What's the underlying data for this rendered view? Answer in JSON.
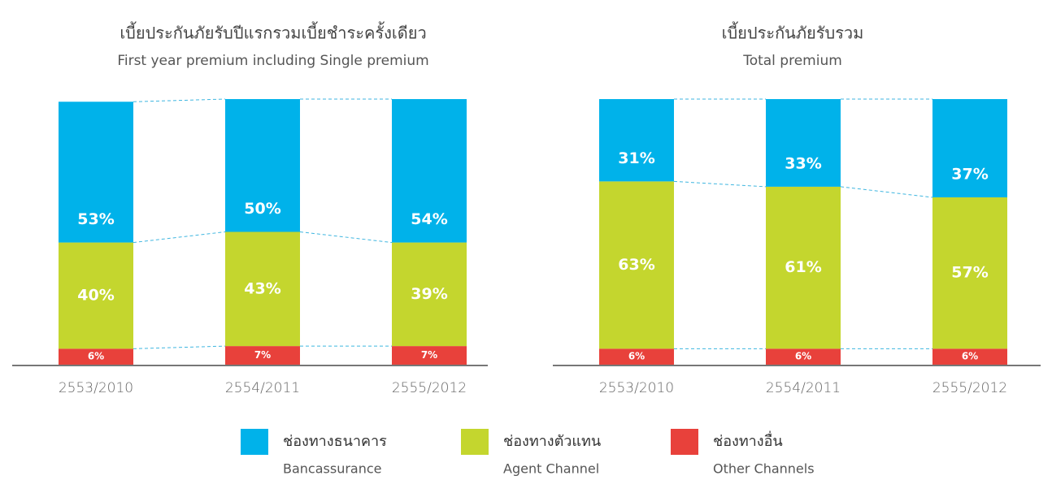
{
  "chart_data": [
    {
      "type": "bar",
      "stacked": true,
      "title": "เบี้ยประกันภัยรับปีแรกรวมเบี้ยชำระครั้งเดียว",
      "subtitle": "First year premium including Single premium",
      "categories": [
        "2553/2010",
        "2554/2011",
        "2555/2012"
      ],
      "ylim": [
        0,
        100
      ],
      "series": [
        {
          "name": "ช่องทางธนาคาร",
          "subname": "Bancassurance",
          "color": "#00b2ea",
          "values": [
            53,
            50,
            54
          ],
          "value_labels": [
            "53%",
            "50%",
            "54%"
          ]
        },
        {
          "name": "ช่องทางตัวแทน",
          "subname": "Agent Channel",
          "color": "#c4d62e",
          "values": [
            40,
            43,
            39
          ],
          "value_labels": [
            "40%",
            "43%",
            "39%"
          ]
        },
        {
          "name": "ช่องทางอื่น",
          "subname": "Other Channels",
          "color": "#e8413b",
          "values": [
            6,
            7,
            7
          ],
          "value_labels": [
            "6%",
            "7%",
            "7%"
          ]
        }
      ]
    },
    {
      "type": "bar",
      "stacked": true,
      "title": "เบี้ยประกันภัยรับรวม",
      "subtitle": "Total premium",
      "categories": [
        "2553/2010",
        "2554/2011",
        "2555/2012"
      ],
      "ylim": [
        0,
        100
      ],
      "series": [
        {
          "name": "ช่องทางธนาคาร",
          "color": "#00b2ea",
          "values": [
            31,
            33,
            37
          ],
          "value_labels": [
            "31%",
            "33%",
            "37%"
          ]
        },
        {
          "name": "ช่องทางตัวแทน",
          "color": "#c4d62e",
          "values": [
            63,
            61,
            57
          ],
          "value_labels": [
            "63%",
            "61%",
            "57%"
          ]
        },
        {
          "name": "ช่องทางอื่น",
          "color": "#e8413b",
          "values": [
            6,
            6,
            6
          ],
          "value_labels": [
            "6%",
            "6%",
            "6%"
          ]
        }
      ]
    }
  ]
}
